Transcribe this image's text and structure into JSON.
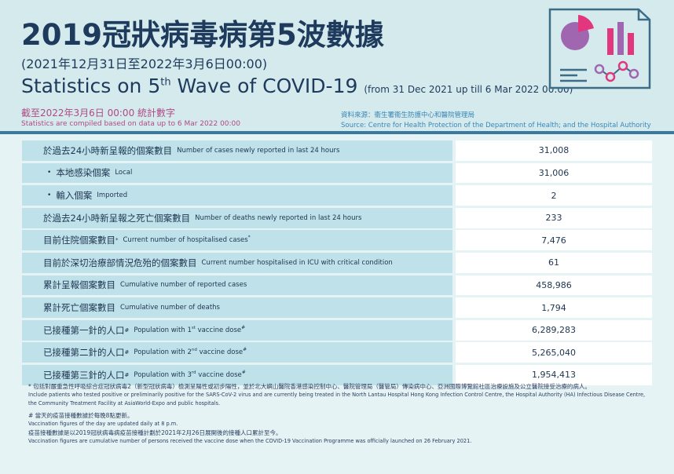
{
  "header": {
    "title_zh": "2019冠狀病毒病第5波數據",
    "date_range_zh": "(2021年12月31日至2022年3月6日00:00)",
    "title_en_prefix": "Statistics on 5",
    "title_en_sup": "th",
    "title_en_suffix": " Wave of COVID-19",
    "title_en_range": "(from 31 Dec 2021 up till 6 Mar 2022 00:00)",
    "asof_zh": "截至2022年3月6日 00:00 統計數字",
    "asof_en": "Statistics are compiled based on data up to 6 Mar 2022 00:00",
    "source_zh": "資料來源：衞生署衞生防護中心和醫院管理局",
    "source_en": "Source: Centre for Health Protection of the Department of Health; and the Hospital Authority"
  },
  "colors": {
    "background": "#d4eaec",
    "title": "#1e3a5c",
    "magenta": "#b04a86",
    "label_cell": "#bfe1ea",
    "value_cell": "#ffffff",
    "accent_pink": "#e2367f",
    "accent_purple": "#a066b0"
  },
  "logo_icon": "statistics-report-icon",
  "rows": [
    {
      "zh": "於過去24小時新呈報的個案數目",
      "en": "Number of cases newly reported in last 24 hours",
      "value": "31,008"
    },
    {
      "zh": "本地感染個案",
      "en": "Local",
      "value": "31,006",
      "sub": true
    },
    {
      "zh": "輸入個案",
      "en": "Imported",
      "value": "2",
      "sub": true
    },
    {
      "zh": "於過去24小時新呈報之死亡個案數目",
      "en": "Number of deaths newly reported in last 24 hours",
      "value": "233"
    },
    {
      "zh": "目前住院個案數目",
      "zh_sup": "*",
      "en": "Current number of hospitalised cases",
      "en_sup": "*",
      "value": "7,476"
    },
    {
      "zh": "目前於深切治療部情況危殆的個案數目",
      "en": "Current number hospitalised in ICU with critical condition",
      "value": "61"
    },
    {
      "zh": "累計呈報個案數目",
      "en": "Cumulative number of reported cases",
      "value": "458,986"
    },
    {
      "zh": "累計死亡個案數目",
      "en": "Cumulative number of deaths",
      "value": "1,794"
    },
    {
      "zh": "已接種第一針的人口",
      "zh_sup": "#",
      "en": "Population with 1",
      "en_ord": "st",
      "en_tail": " vaccine dose",
      "en_sup": "#",
      "value": "6,289,283"
    },
    {
      "zh": "已接種第二針的人口",
      "zh_sup": "#",
      "en": "Population with 2",
      "en_ord": "nd",
      "en_tail": " vaccine dose",
      "en_sup": "#",
      "value": "5,265,040"
    },
    {
      "zh": "已接種第三針的人口",
      "zh_sup": "#",
      "en": "Population with 3",
      "en_ord": "rd",
      "en_tail": " vaccine dose",
      "en_sup": "#",
      "value": "1,954,413"
    }
  ],
  "notes": {
    "star_zh": "* 包括對嚴重急性呼吸綜合症冠狀病毒2（新型冠狀病毒）檢測呈陽性或初步陽性，並於北大嶼山醫院香港感染控制中心、醫院管理局（醫管局）傳染病中心、亞洲國際博覽館社區治療設施及公立醫院接受治療的病人。",
    "star_en": "Include patients who tested positive or preliminarily positive for the SARS-CoV-2 virus and are currently being treated in the North Lantau Hospital Hong Kong Infection Control Centre, the Hospital Authority (HA) Infectious Disease Centre, the Community Treatment Facility at AsiaWorld-Expo and public hospitals.",
    "hash_zh": "# 當天的疫苗接種數據於每晚8點更新。",
    "hash_en": "Vaccination figures of the day are updated daily at 8 p.m.",
    "cum_zh": "疫苗接種數據是以2019冠狀病毒病疫苗接種計劃於2021年2月26日展開後的接種人口累計至今。",
    "cum_en": "Vaccination figures are cumulative number of persons received the vaccine dose when the COVID-19 Vaccination Programme was officially launched on 26 February 2021."
  }
}
